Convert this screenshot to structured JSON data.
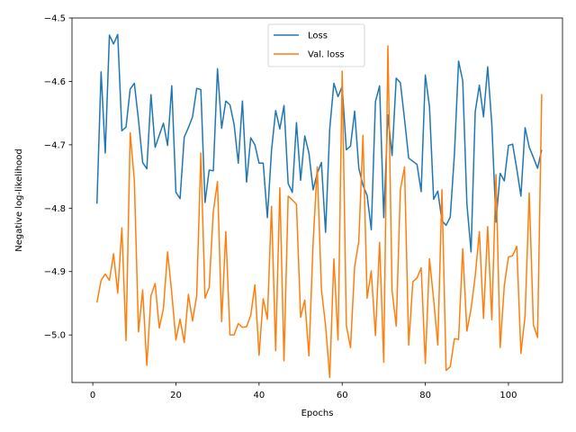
{
  "chart_data": {
    "type": "line",
    "xlabel": "Epochs",
    "ylabel": "Negative log-likelihood",
    "xlim": [
      -5,
      113
    ],
    "ylim": [
      -5.075,
      -4.5
    ],
    "xticks": [
      0,
      20,
      40,
      60,
      80,
      100
    ],
    "yticks": [
      -5.0,
      -4.9,
      -4.8,
      -4.7,
      -4.6,
      -4.5
    ],
    "ytick_labels": [
      "−5.0",
      "−4.9",
      "−4.8",
      "−4.7",
      "−4.6",
      "−4.5"
    ],
    "grid": false,
    "legend_position": "top-center",
    "series": [
      {
        "name": "Loss",
        "color": "#1f77b4",
        "x": [
          1,
          2,
          3,
          4,
          5,
          6,
          7,
          8,
          9,
          10,
          11,
          12,
          13,
          14,
          15,
          16,
          17,
          18,
          19,
          20,
          21,
          22,
          23,
          24,
          25,
          26,
          27,
          28,
          29,
          30,
          31,
          32,
          33,
          34,
          35,
          36,
          37,
          38,
          39,
          40,
          41,
          42,
          43,
          44,
          45,
          46,
          47,
          48,
          49,
          50,
          51,
          52,
          53,
          54,
          55,
          56,
          57,
          58,
          59,
          60,
          61,
          62,
          63,
          64,
          65,
          66,
          67,
          68,
          69,
          70,
          71,
          72,
          73,
          74,
          75,
          76,
          77,
          78,
          79,
          80,
          81,
          82,
          83,
          84,
          85,
          86,
          87,
          88,
          89,
          90,
          91,
          92,
          93,
          94,
          95,
          96,
          97,
          98,
          99,
          100,
          101,
          102,
          103,
          104,
          105,
          106,
          107,
          108
        ],
        "values": [
          -4.793,
          -4.585,
          -4.713,
          -4.527,
          -4.541,
          -4.526,
          -4.678,
          -4.672,
          -4.612,
          -4.603,
          -4.661,
          -4.728,
          -4.738,
          -4.621,
          -4.704,
          -4.685,
          -4.666,
          -4.701,
          -4.607,
          -4.775,
          -4.785,
          -4.688,
          -4.673,
          -4.656,
          -4.611,
          -4.613,
          -4.791,
          -4.74,
          -4.741,
          -4.58,
          -4.674,
          -4.631,
          -4.637,
          -4.668,
          -4.729,
          -4.631,
          -4.759,
          -4.689,
          -4.7,
          -4.729,
          -4.729,
          -4.815,
          -4.709,
          -4.646,
          -4.675,
          -4.638,
          -4.761,
          -4.775,
          -4.665,
          -4.756,
          -4.686,
          -4.713,
          -4.771,
          -4.745,
          -4.728,
          -4.838,
          -4.675,
          -4.603,
          -4.624,
          -4.608,
          -4.708,
          -4.702,
          -4.647,
          -4.737,
          -4.764,
          -4.78,
          -4.834,
          -4.632,
          -4.607,
          -4.815,
          -4.653,
          -4.717,
          -4.595,
          -4.602,
          -4.66,
          -4.721,
          -4.726,
          -4.731,
          -4.774,
          -4.59,
          -4.64,
          -4.786,
          -4.773,
          -4.82,
          -4.827,
          -4.814,
          -4.715,
          -4.568,
          -4.599,
          -4.793,
          -4.869,
          -4.648,
          -4.606,
          -4.656,
          -4.577,
          -4.668,
          -4.822,
          -4.745,
          -4.757,
          -4.701,
          -4.699,
          -4.738,
          -4.781,
          -4.673,
          -4.704,
          -4.72,
          -4.737,
          -4.708
        ]
      },
      {
        "name": "Val. loss",
        "color": "#ff7f0e",
        "x": [
          1,
          2,
          3,
          4,
          5,
          6,
          7,
          8,
          9,
          10,
          11,
          12,
          13,
          14,
          15,
          16,
          17,
          18,
          19,
          20,
          21,
          22,
          23,
          24,
          25,
          26,
          27,
          28,
          29,
          30,
          31,
          32,
          33,
          34,
          35,
          36,
          37,
          38,
          39,
          40,
          41,
          42,
          43,
          44,
          45,
          46,
          47,
          48,
          49,
          50,
          51,
          52,
          53,
          54,
          55,
          56,
          57,
          58,
          59,
          60,
          61,
          62,
          63,
          64,
          65,
          66,
          67,
          68,
          69,
          70,
          71,
          72,
          73,
          74,
          75,
          76,
          77,
          78,
          79,
          80,
          81,
          82,
          83,
          84,
          85,
          86,
          87,
          88,
          89,
          90,
          91,
          92,
          93,
          94,
          95,
          96,
          97,
          98,
          99,
          100,
          101,
          102,
          103,
          104,
          105,
          106,
          107,
          108
        ],
        "values": [
          -4.949,
          -4.914,
          -4.904,
          -4.914,
          -4.872,
          -4.934,
          -4.831,
          -5.009,
          -4.681,
          -4.756,
          -4.995,
          -4.929,
          -5.048,
          -4.938,
          -4.919,
          -4.989,
          -4.958,
          -4.869,
          -4.934,
          -5.008,
          -4.975,
          -5.012,
          -4.936,
          -4.978,
          -4.938,
          -4.713,
          -4.942,
          -4.925,
          -4.805,
          -4.758,
          -4.979,
          -4.837,
          -5.0,
          -5.0,
          -4.982,
          -4.988,
          -4.987,
          -4.969,
          -4.921,
          -5.032,
          -4.943,
          -4.975,
          -4.797,
          -5.025,
          -4.768,
          -5.041,
          -4.781,
          -4.787,
          -4.794,
          -4.972,
          -4.945,
          -5.033,
          -4.856,
          -4.735,
          -4.928,
          -4.985,
          -5.067,
          -4.88,
          -5.008,
          -4.584,
          -4.985,
          -5.02,
          -4.892,
          -4.852,
          -4.685,
          -4.942,
          -4.899,
          -5.001,
          -4.854,
          -5.043,
          -4.544,
          -4.93,
          -4.986,
          -4.771,
          -4.735,
          -5.016,
          -4.916,
          -4.91,
          -4.894,
          -5.045,
          -4.88,
          -4.944,
          -5.016,
          -4.771,
          -5.056,
          -5.05,
          -5.006,
          -5.007,
          -4.864,
          -4.994,
          -4.959,
          -4.907,
          -4.837,
          -4.974,
          -4.829,
          -4.976,
          -4.747,
          -5.02,
          -4.922,
          -4.877,
          -4.875,
          -4.86,
          -5.029,
          -4.97,
          -4.776,
          -4.984,
          -5.004,
          -4.62
        ]
      }
    ]
  }
}
